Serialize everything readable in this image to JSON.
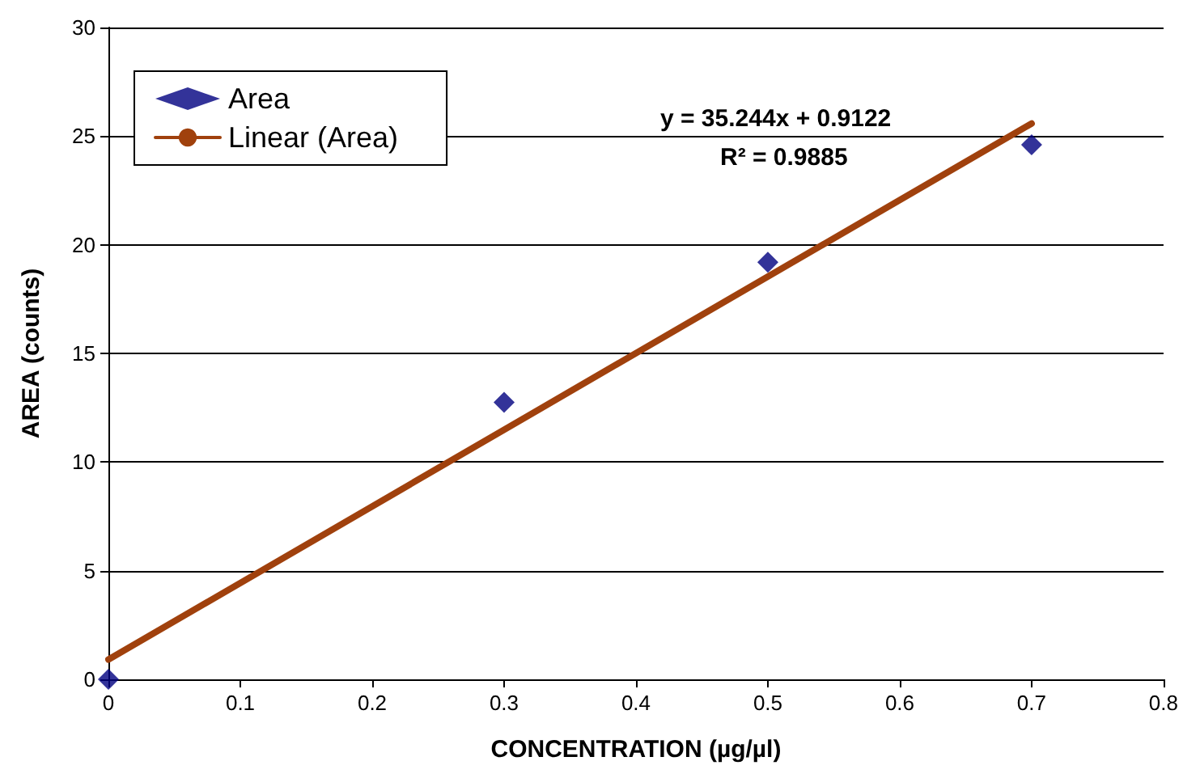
{
  "chart_data": {
    "type": "scatter",
    "xlabel": "CONCENTRATION (µg/µl)",
    "ylabel": "AREA (counts)",
    "annotations": [
      "y = 35.244x + 0.9122",
      "R² = 0.9885"
    ],
    "series": [
      {
        "name": "Area",
        "color": "#000080",
        "x": [
          0,
          0.3,
          0.5,
          0.7
        ],
        "values": [
          0,
          12.75,
          19.2,
          24.6
        ],
        "marker": "diamond"
      },
      {
        "name": "Linear (Area)",
        "type": "line",
        "color": "#a0410d",
        "x": [
          0,
          0.7
        ],
        "values": [
          0.9122,
          25.583
        ],
        "marker": "none"
      }
    ],
    "xlim": [
      0,
      0.8
    ],
    "xticks": [
      0,
      0.1,
      0.2,
      0.3,
      0.4,
      0.5,
      0.6,
      0.7,
      0.8
    ],
    "ylim": [
      0,
      30
    ],
    "yticks": [
      0,
      5,
      10,
      15,
      20,
      25,
      30
    ],
    "grid": "y",
    "legend": "top left"
  }
}
